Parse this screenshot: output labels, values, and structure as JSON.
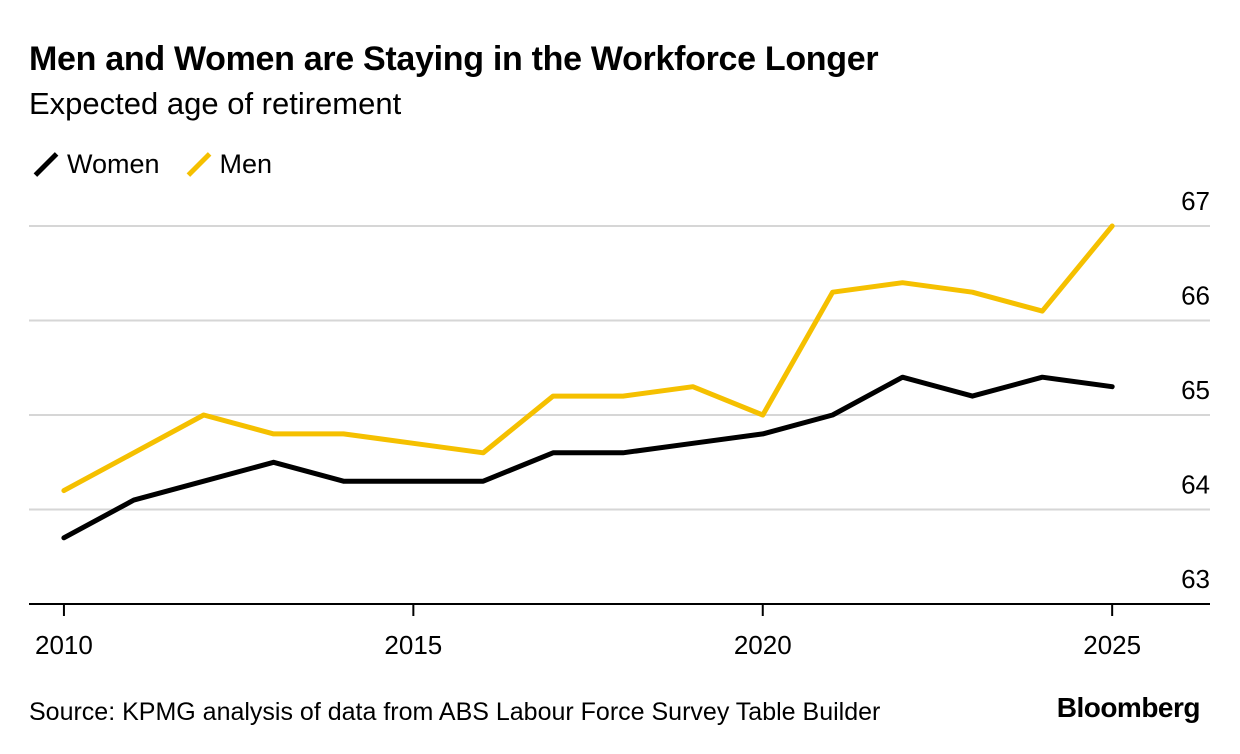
{
  "header": {
    "title": "Men and Women are Staying in the Workforce Longer",
    "subtitle": "Expected age of retirement"
  },
  "legend": {
    "items": [
      {
        "label": "Women",
        "color": "#000000"
      },
      {
        "label": "Men",
        "color": "#f5c000"
      }
    ]
  },
  "footer": {
    "source": "Source: KPMG analysis of data from ABS Labour Force Survey Table Builder",
    "brand": "Bloomberg"
  },
  "chart_data": {
    "type": "line",
    "x": [
      2010,
      2011,
      2012,
      2013,
      2014,
      2015,
      2016,
      2017,
      2018,
      2019,
      2020,
      2021,
      2022,
      2023,
      2024,
      2025
    ],
    "series": [
      {
        "name": "Women",
        "color": "#000000",
        "values": [
          63.7,
          64.1,
          64.3,
          64.5,
          64.3,
          64.3,
          64.3,
          64.6,
          64.6,
          64.7,
          64.8,
          65.0,
          65.4,
          65.2,
          65.4,
          65.3
        ]
      },
      {
        "name": "Men",
        "color": "#f5c000",
        "values": [
          64.2,
          64.6,
          65.0,
          64.8,
          64.8,
          64.7,
          64.6,
          65.2,
          65.2,
          65.3,
          65.0,
          66.3,
          66.4,
          66.3,
          66.1,
          67.0
        ]
      }
    ],
    "xticks": [
      2010,
      2015,
      2020,
      2025
    ],
    "yticks": [
      63,
      64,
      65,
      66,
      67
    ],
    "xlim": [
      2009.5,
      2026.4
    ],
    "ylim": [
      63,
      67
    ],
    "grid": true,
    "y_axis_side": "right",
    "legend_position": "top-left"
  }
}
